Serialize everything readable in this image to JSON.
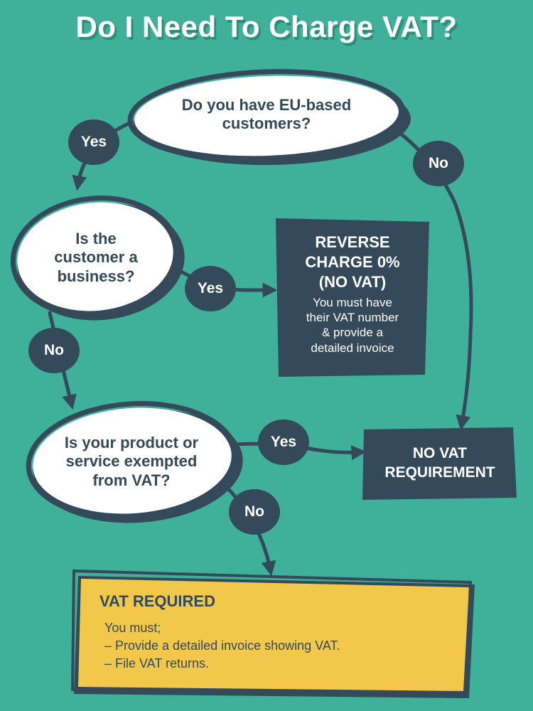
{
  "title": "Do I Need To Charge VAT?",
  "colors": {
    "background": "#3fb09a",
    "dark": "#34495a",
    "bubble": "#ffffff",
    "result_required": "#f1c84a"
  },
  "nodes": {
    "q1": {
      "line1": "Do you have EU-based",
      "line2": "customers?"
    },
    "q2": {
      "line1": "Is the",
      "line2": "customer a",
      "line3": "business?"
    },
    "q3": {
      "line1": "Is your product or",
      "line2": "service exempted",
      "line3": "from VAT?"
    },
    "reverse_charge": {
      "head1": "REVERSE",
      "head2": "CHARGE 0%",
      "head3": "(NO VAT)",
      "sub1": "You must have",
      "sub2": "their VAT number",
      "sub3": "& provide a",
      "sub4": "detailed invoice"
    },
    "no_vat": {
      "line1": "NO VAT",
      "line2": "REQUIREMENT"
    },
    "vat_required": {
      "head": "VAT REQUIRED",
      "line1": "You must;",
      "line2": "– Provide a detailed invoice showing VAT.",
      "line3": "– File VAT returns."
    }
  },
  "edges": {
    "q1_yes": "Yes",
    "q1_no": "No",
    "q2_yes": "Yes",
    "q2_no": "No",
    "q3_yes": "Yes",
    "q3_no": "No"
  }
}
